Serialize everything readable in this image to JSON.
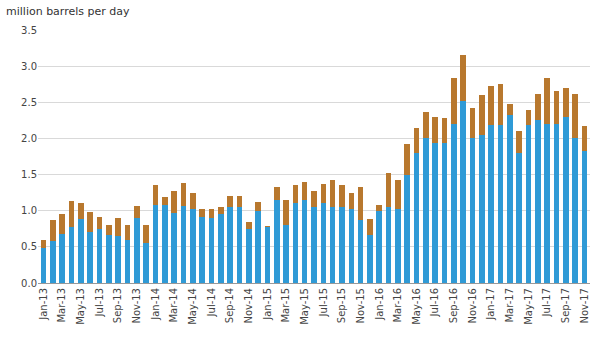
{
  "chart_data": {
    "type": "bar",
    "stacked": true,
    "grid": true,
    "ylabel": "million barrels per day",
    "categories": [
      "Jan-13",
      null,
      "Mar-13",
      null,
      "May-13",
      null,
      "Jul-13",
      null,
      "Sep-13",
      null,
      "Nov-13",
      null,
      "Jan-14",
      null,
      "Mar-14",
      null,
      "May-14",
      null,
      "Jul-14",
      null,
      "Sep-14",
      null,
      "Nov-14",
      null,
      "Jan-15",
      null,
      "Mar-15",
      null,
      "May-15",
      null,
      "Jul-15",
      null,
      "Sep-15",
      null,
      "Nov-15",
      null,
      "Jan-16",
      null,
      "Mar-16",
      null,
      "May-16",
      null,
      "Jul-16",
      null,
      "Sep-16",
      null,
      "Nov-16",
      null,
      "Jan-17",
      null,
      "Mar-17",
      null,
      "May-17",
      null,
      "Jul-17",
      null,
      "Sep-17",
      null,
      "Nov-17"
    ],
    "series": [
      {
        "color": "#2f9ad6",
        "values": [
          0.48,
          0.58,
          0.68,
          0.78,
          0.88,
          0.7,
          0.75,
          0.67,
          0.65,
          0.6,
          0.9,
          0.55,
          1.08,
          1.08,
          0.97,
          1.07,
          1.02,
          0.92,
          0.9,
          0.95,
          1.05,
          1.05,
          0.75,
          1.0,
          0.77,
          1.15,
          0.8,
          1.1,
          1.15,
          1.05,
          1.1,
          1.05,
          1.05,
          1.03,
          0.87,
          0.66,
          1.0,
          1.05,
          1.02,
          1.5,
          1.8,
          2.0,
          1.93,
          1.93,
          2.2,
          2.52,
          2.0,
          2.05,
          2.18,
          2.18,
          2.33,
          1.8,
          2.18,
          2.25,
          2.2,
          2.2,
          2.3,
          2.0,
          1.83
        ]
      },
      {
        "color": "#b8782e",
        "values": [
          0.12,
          0.29,
          0.27,
          0.35,
          0.22,
          0.28,
          0.17,
          0.13,
          0.25,
          0.2,
          0.16,
          0.25,
          0.27,
          0.11,
          0.3,
          0.31,
          0.23,
          0.11,
          0.13,
          0.1,
          0.15,
          0.16,
          0.1,
          0.12,
          0.02,
          0.18,
          0.35,
          0.25,
          0.25,
          0.22,
          0.27,
          0.38,
          0.3,
          0.21,
          0.46,
          0.22,
          0.08,
          0.47,
          0.4,
          0.42,
          0.35,
          0.37,
          0.37,
          0.35,
          0.63,
          0.63,
          0.42,
          0.55,
          0.54,
          0.57,
          0.15,
          0.3,
          0.22,
          0.37,
          0.63,
          0.45,
          0.4,
          0.62,
          0.34
        ]
      }
    ],
    "ylim": [
      0,
      3.5
    ],
    "yticks": [
      {
        "value": 0,
        "label": "0.0"
      },
      0.5,
      {
        "value": 1,
        "label": "1.0"
      },
      1.5,
      {
        "value": 2,
        "label": "2.0"
      },
      2.5,
      {
        "value": 3,
        "label": "3.0"
      },
      3.5
    ]
  }
}
